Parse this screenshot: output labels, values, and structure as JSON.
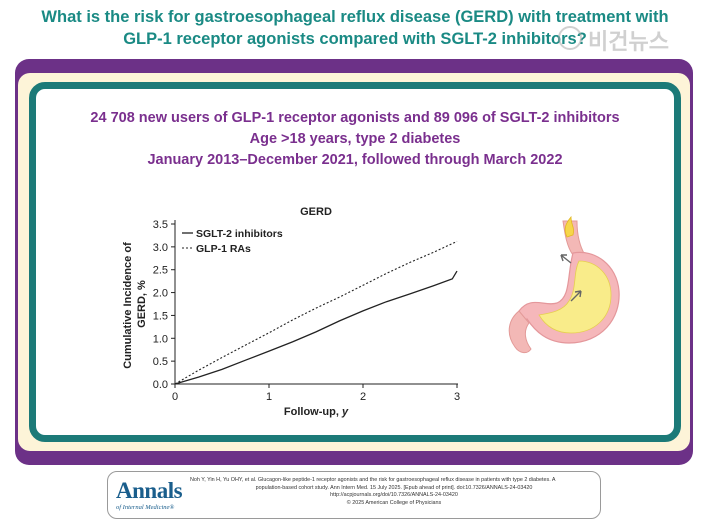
{
  "header": {
    "title_line1": "What is the risk for gastroesophageal reflux disease (GERD) with treatment with",
    "title_line2": "GLP-1 receptor agonists compared with SGLT-2 inhibitors?"
  },
  "watermark": {
    "text": "비건뉴스"
  },
  "study": {
    "line1": "24 708 new users of GLP-1 receptor agonists and 89 096 of SGLT-2 inhibitors",
    "line2": "Age >18 years, type 2 diabetes",
    "line3": "January 2013–December 2021, followed through March 2022"
  },
  "colors": {
    "teal": "#1a8a84",
    "purple": "#7a2f8e",
    "band": "#6c3187",
    "frame": "#1c7a78",
    "cream": "#fdf4d8"
  },
  "illustration": {
    "icon": "stomach-icon"
  },
  "chart_data": {
    "type": "line",
    "title": "GERD",
    "xlabel": "Follow-up, y",
    "ylabel": "Cumulative Incidence of GERD, %",
    "xlim": [
      0,
      3
    ],
    "ylim": [
      0,
      3.5
    ],
    "xticks": [
      "0",
      "1",
      "2",
      "3"
    ],
    "yticks": [
      "0.0",
      "0.5",
      "1.0",
      "1.5",
      "2.0",
      "2.5",
      "3.0",
      "3.5"
    ],
    "grid": false,
    "legend_position": "top-left",
    "series": [
      {
        "name": "SGLT-2 inhibitors",
        "style": "solid",
        "x": [
          0,
          0.25,
          0.5,
          0.75,
          1.0,
          1.25,
          1.5,
          1.75,
          2.0,
          2.25,
          2.5,
          2.75,
          2.95,
          3.0
        ],
        "y": [
          0,
          0.15,
          0.32,
          0.52,
          0.72,
          0.92,
          1.14,
          1.38,
          1.6,
          1.8,
          1.97,
          2.15,
          2.3,
          2.47
        ]
      },
      {
        "name": "GLP-1 RAs",
        "style": "dashed",
        "x": [
          0,
          0.25,
          0.5,
          0.75,
          1.0,
          1.25,
          1.5,
          1.75,
          2.0,
          2.25,
          2.5,
          2.75,
          3.0
        ],
        "y": [
          0,
          0.3,
          0.58,
          0.85,
          1.12,
          1.4,
          1.66,
          1.9,
          2.16,
          2.42,
          2.66,
          2.88,
          3.12
        ]
      }
    ]
  },
  "citation": {
    "logo": "Annals",
    "logo_sub": "of Internal Medicine®",
    "line1": "Noh Y, Yin H, Yu OHY, et al. Glucagon-like peptide-1 receptor agonists and the risk for gastroesophageal reflux disease in patients with type 2 diabetes. A",
    "line2": "population-based cohort study. Ann Intern Med. 15 July 2025. [Epub ahead of print]. doi:10.7326/ANNALS-24-03420",
    "line3": "http://acpjournals.org/doi/10.7326/ANNALS-24-03420",
    "line4": "© 2025 American College of Physicians"
  }
}
